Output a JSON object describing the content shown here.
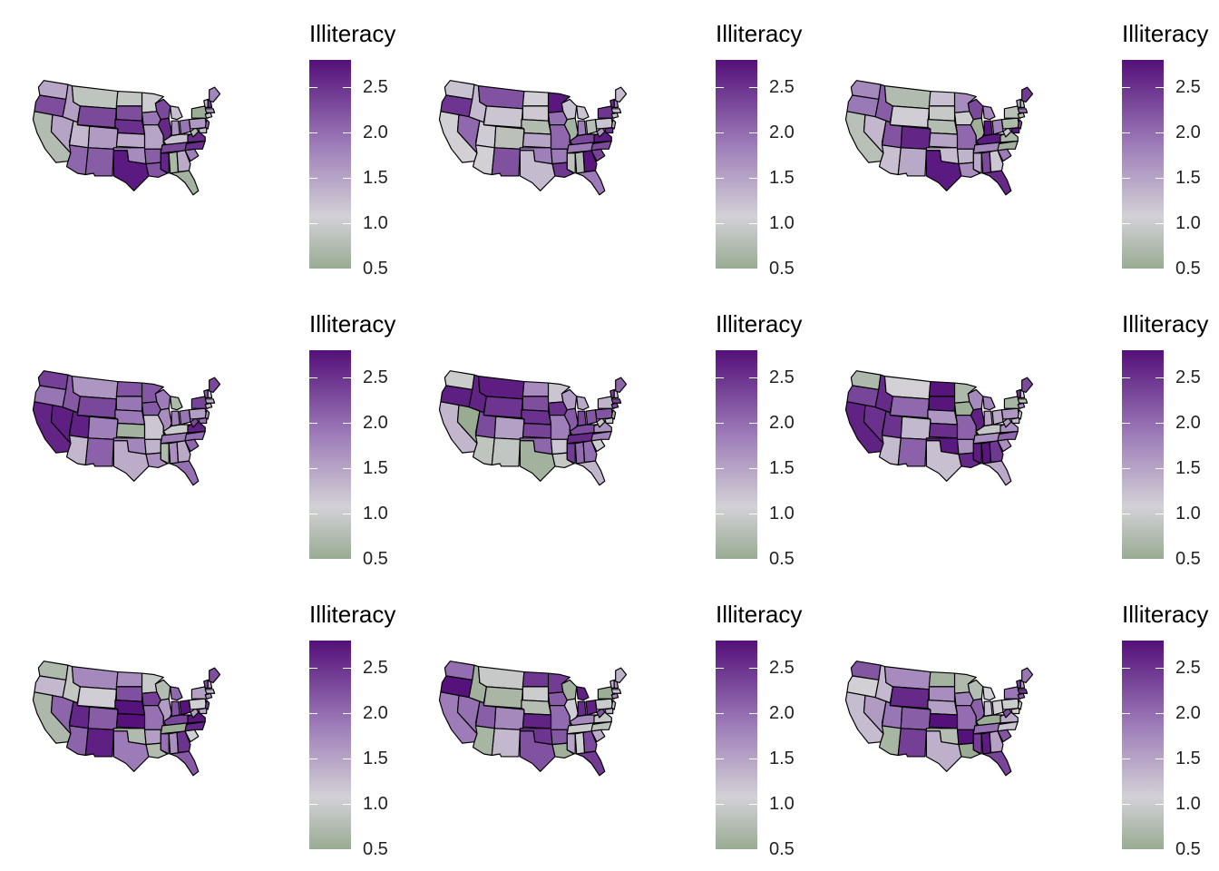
{
  "chart_data": {
    "type": "choropleth-small-multiples",
    "layout": {
      "rows": 3,
      "cols": 3
    },
    "panels": [
      {
        "legend_title": "Illiteracy"
      },
      {
        "legend_title": "Illiteracy"
      },
      {
        "legend_title": "Illiteracy"
      },
      {
        "legend_title": "Illiteracy"
      },
      {
        "legend_title": "Illiteracy"
      },
      {
        "legend_title": "Illiteracy"
      },
      {
        "legend_title": "Illiteracy"
      },
      {
        "legend_title": "Illiteracy"
      },
      {
        "legend_title": "Illiteracy"
      }
    ],
    "legend": {
      "min": 0.5,
      "max": 2.8,
      "ticks": [
        0.5,
        1.0,
        1.5,
        2.0,
        2.5
      ],
      "tick_labels": [
        "0.5",
        "1.0",
        "1.5",
        "2.0",
        "2.5"
      ],
      "colors": {
        "low": "#98ab92",
        "mid": "#d3d1d6",
        "mid_high": "#9c7bb8",
        "high": "#541079"
      }
    },
    "map_region": "USA lower 48 states"
  }
}
